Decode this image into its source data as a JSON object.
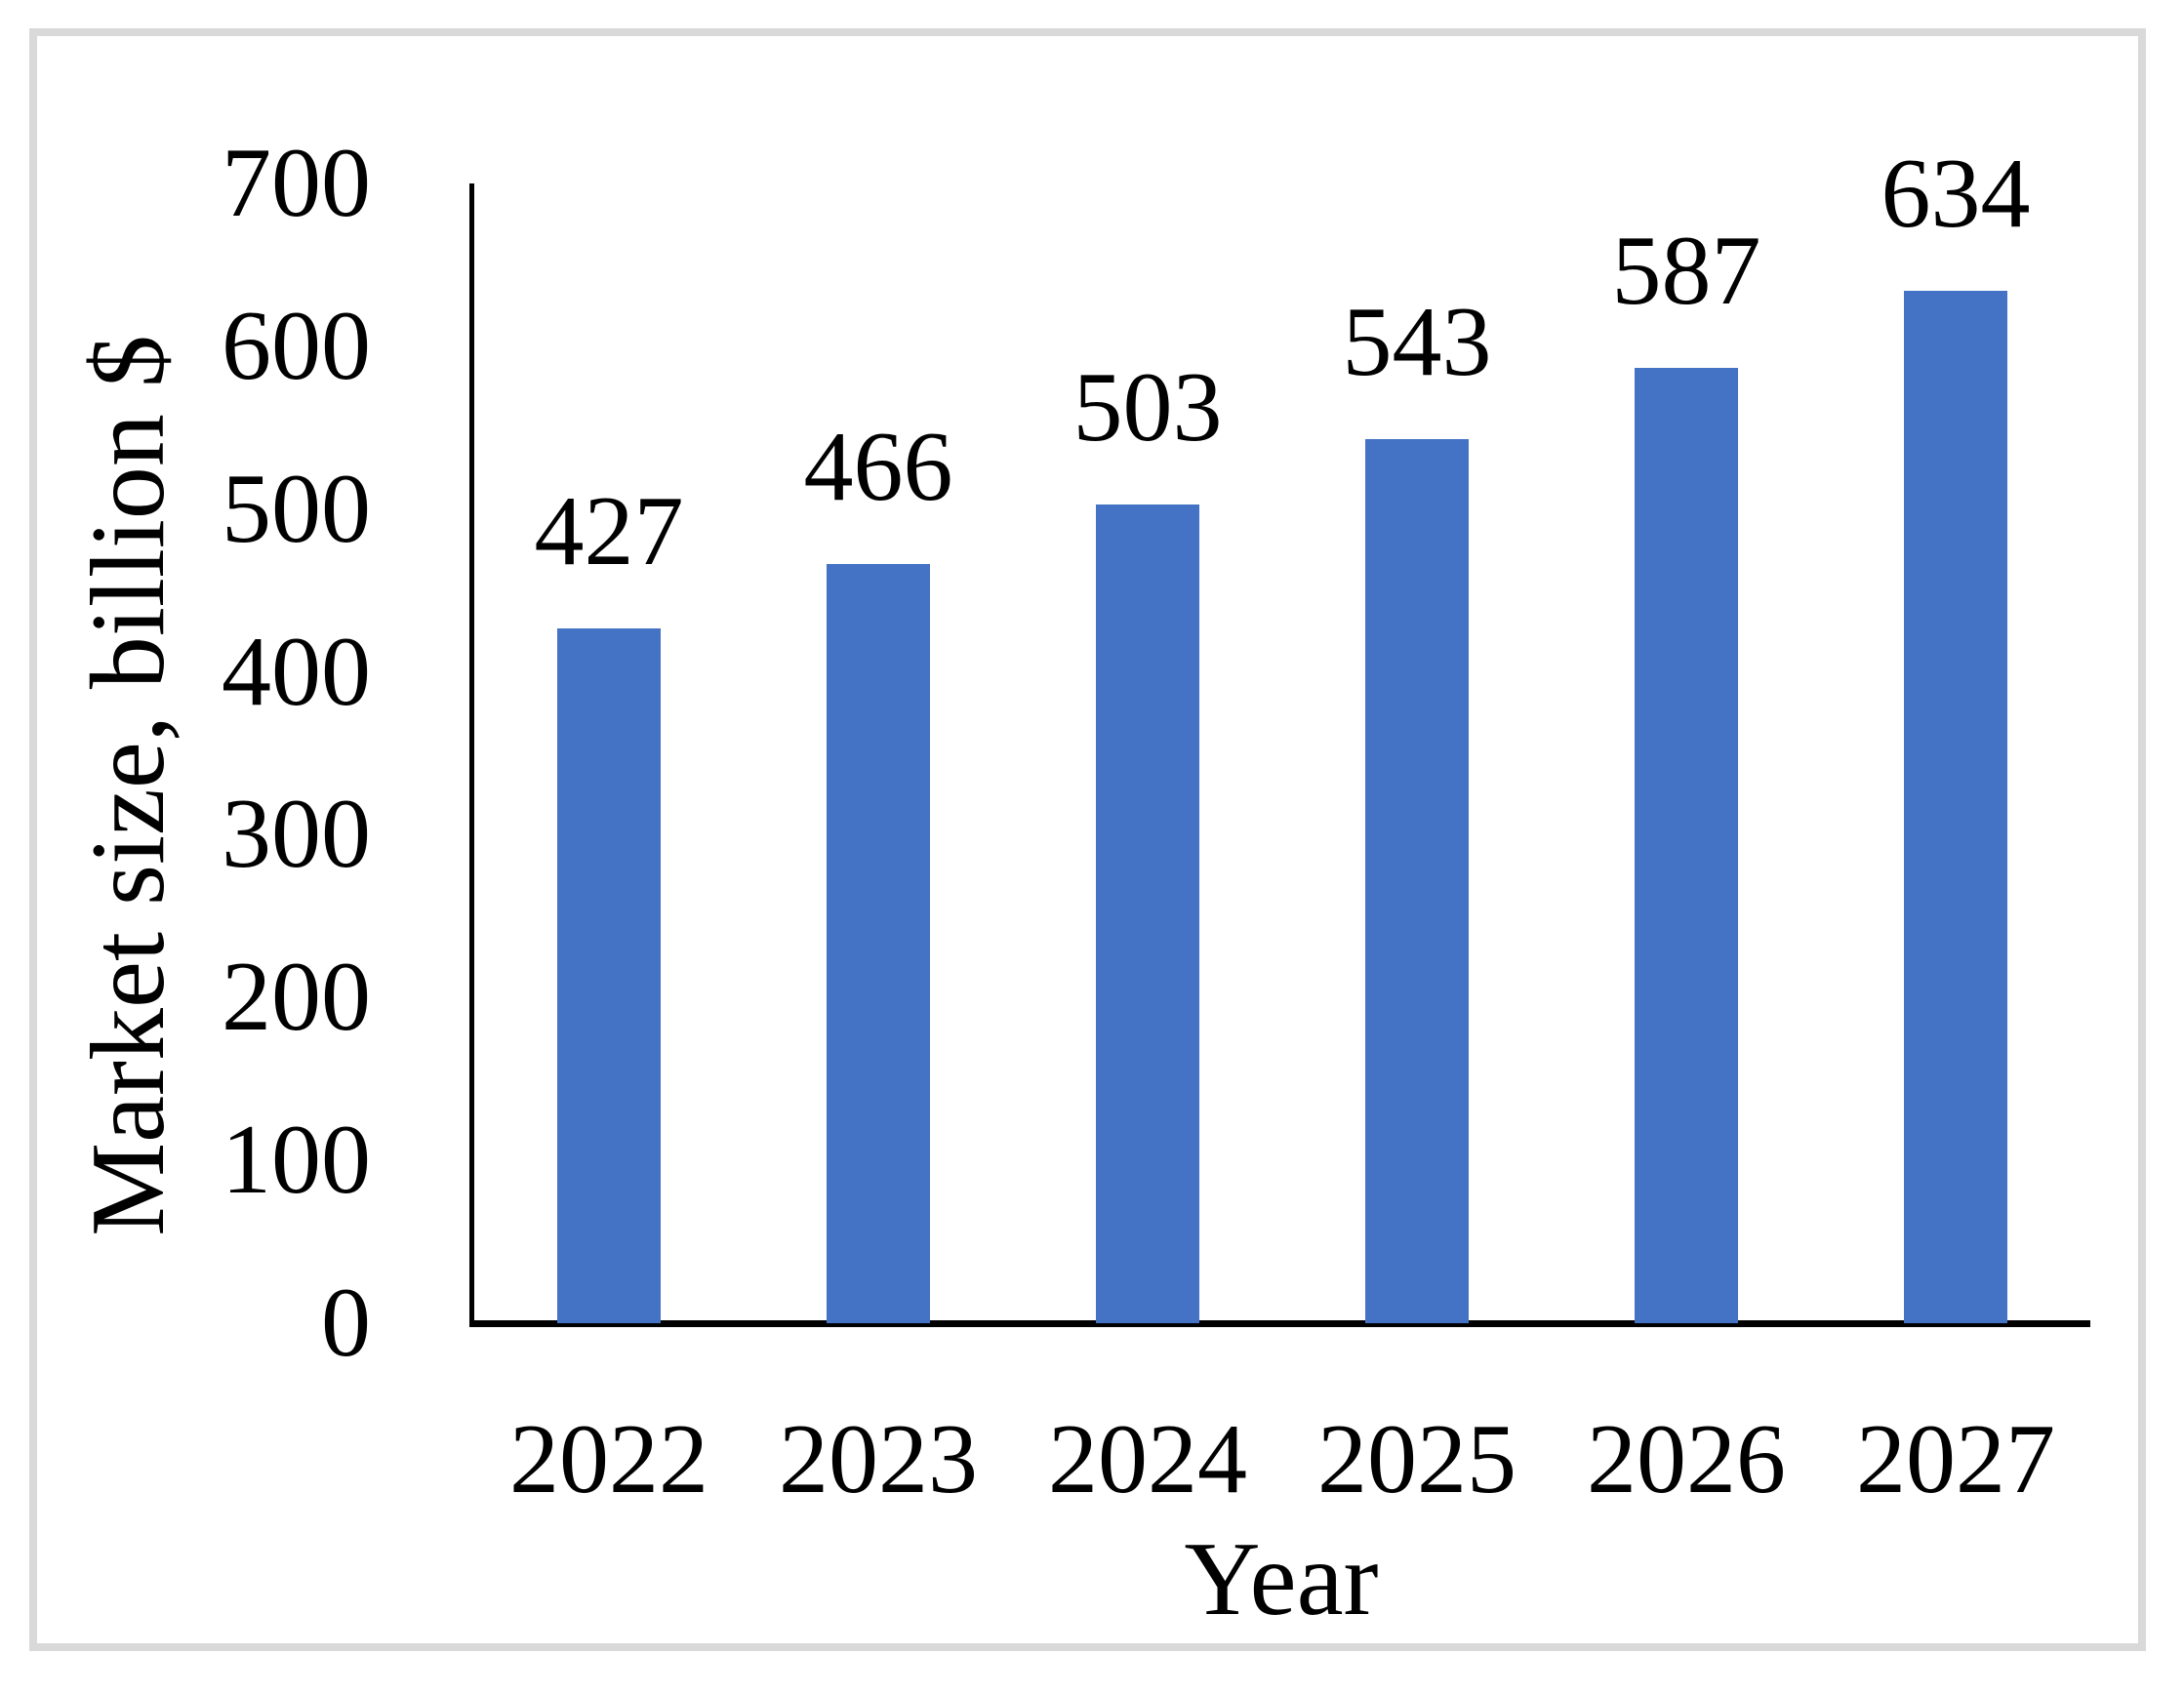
{
  "chart_data": {
    "type": "bar",
    "title": "",
    "categories": [
      "2022",
      "2023",
      "2024",
      "2025",
      "2026",
      "2027"
    ],
    "values": [
      427,
      466,
      503,
      543,
      587,
      634
    ],
    "data_labels": [
      "427",
      "466",
      "503",
      "543",
      "587",
      "634"
    ],
    "xlabel": "Year",
    "ylabel": "Market size, billion $",
    "ylim": [
      0,
      700
    ],
    "yticks": [
      0,
      100,
      200,
      300,
      400,
      500,
      600,
      700
    ],
    "grid": "off",
    "legend": "none",
    "bar_color": "#4472C4",
    "axis_color": "#000000",
    "frame_color": "#D9D9D9"
  }
}
